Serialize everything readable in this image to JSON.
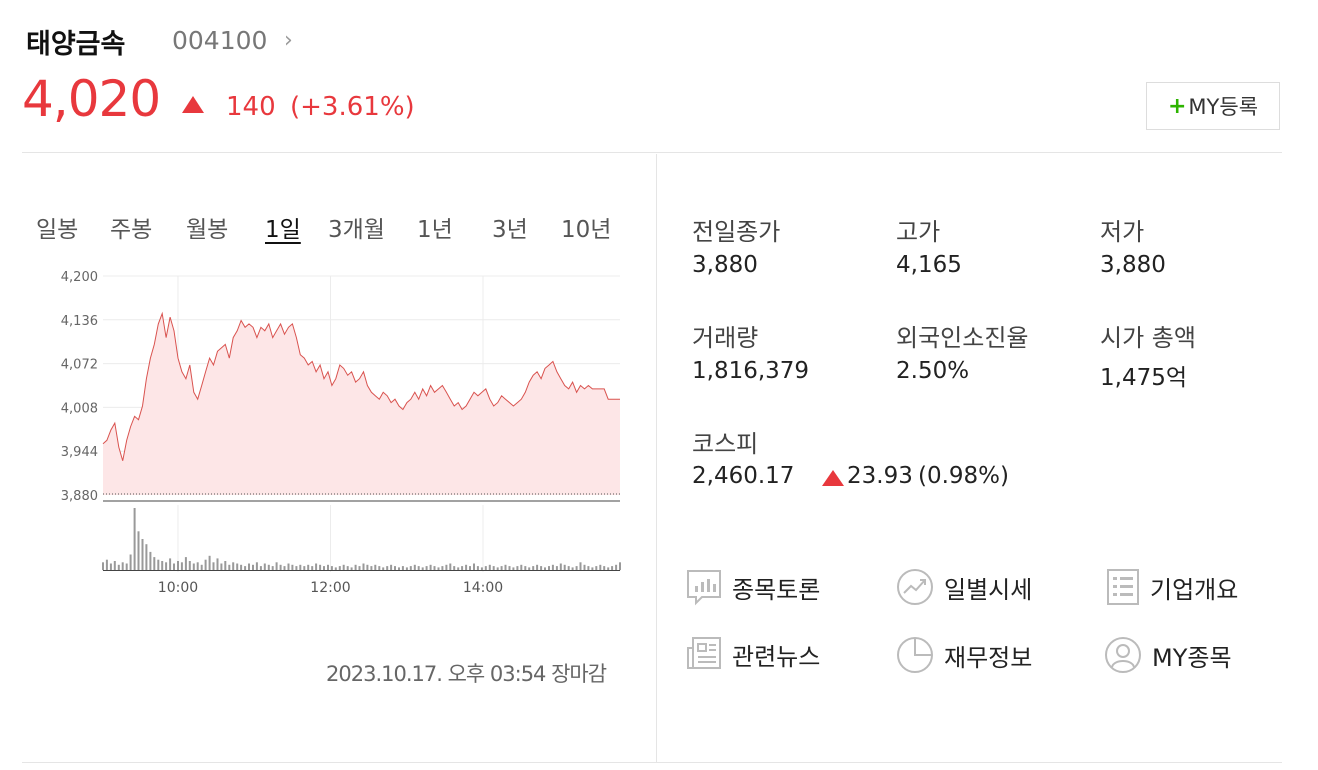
{
  "header": {
    "name": "태양금속",
    "code": "004100",
    "chevron": "›"
  },
  "price": {
    "current": "4,020",
    "change": "140",
    "change_pct": "(+3.61%)",
    "direction_icon": "up-triangle-icon",
    "color": "#e8383d"
  },
  "my_button": {
    "plus": "+",
    "label": "MY등록"
  },
  "period_tabs": [
    "일봉",
    "주봉",
    "월봉",
    "1일",
    "3개월",
    "1년",
    "3년",
    "10년"
  ],
  "active_tab": "1일",
  "chart_data": {
    "type": "line",
    "series": [
      {
        "values": [
          3955,
          3960,
          3975,
          3985,
          3950,
          3930,
          3960,
          3980,
          3995,
          3990,
          4010,
          4050,
          4080,
          4100,
          4130,
          4145,
          4110,
          4140,
          4120,
          4080,
          4060,
          4050,
          4070,
          4030,
          4020,
          4040,
          4060,
          4080,
          4070,
          4090,
          4095,
          4100,
          4080,
          4110,
          4120,
          4135,
          4125,
          4130,
          4125,
          4110,
          4125,
          4120,
          4130,
          4110,
          4120,
          4130,
          4115,
          4125,
          4130,
          4110,
          4085,
          4080,
          4070,
          4075,
          4060,
          4070,
          4050,
          4060,
          4040,
          4050,
          4070,
          4065,
          4055,
          4060,
          4045,
          4050,
          4060,
          4040,
          4030,
          4025,
          4020,
          4030,
          4025,
          4015,
          4020,
          4010,
          4005,
          4015,
          4020,
          4030,
          4020,
          4035,
          4025,
          4040,
          4030,
          4035,
          4040,
          4030,
          4020,
          4010,
          4015,
          4005,
          4010,
          4020,
          4030,
          4025,
          4030,
          4035,
          4020,
          4010,
          4015,
          4025,
          4020,
          4015,
          4010,
          4015,
          4020,
          4030,
          4045,
          4055,
          4060,
          4050,
          4065,
          4070,
          4075,
          4060,
          4050,
          4040,
          4035,
          4045,
          4030,
          4040,
          4035,
          4040,
          4035,
          4035,
          4035,
          4035,
          4020,
          4020,
          4020,
          4020
        ]
      }
    ],
    "volume": [
      6,
      8,
      5,
      7,
      4,
      6,
      5,
      12,
      48,
      30,
      24,
      20,
      14,
      10,
      8,
      7,
      6,
      9,
      5,
      7,
      6,
      10,
      7,
      5,
      6,
      4,
      8,
      11,
      6,
      9,
      5,
      7,
      4,
      6,
      5,
      4,
      3,
      5,
      4,
      6,
      3,
      5,
      4,
      3,
      6,
      4,
      3,
      5,
      4,
      3,
      4,
      3,
      4,
      3,
      5,
      4,
      3,
      4,
      3,
      2,
      3,
      4,
      3,
      2,
      4,
      3,
      5,
      4,
      3,
      4,
      3,
      2,
      3,
      4,
      3,
      2,
      3,
      2,
      3,
      4,
      3,
      2,
      3,
      4,
      3,
      2,
      3,
      4,
      5,
      3,
      2,
      3,
      4,
      3,
      5,
      3,
      2,
      3,
      4,
      3,
      2,
      3,
      4,
      3,
      2,
      3,
      4,
      3,
      2,
      3,
      4,
      3,
      2,
      3,
      4,
      3,
      5,
      4,
      3,
      2,
      3,
      6,
      4,
      3,
      2,
      3,
      4,
      3,
      2,
      3,
      4,
      6
    ],
    "ylim": [
      3880,
      4200
    ],
    "y_ticks": [
      "4,200",
      "4,136",
      "4,072",
      "4,008",
      "3,944",
      "3,880"
    ],
    "x_ticks": [
      "10:00",
      "12:00",
      "14:00"
    ],
    "baseline": 3880,
    "line_color": "#d9534f",
    "fill_color": "#fde6e7",
    "grid": true
  },
  "chart_timestamp": "2023.10.17. 오후 03:54 장마감",
  "stats": [
    {
      "label": "전일종가",
      "value": "3,880",
      "color": "#222"
    },
    {
      "label": "고가",
      "value": "4,165",
      "color": "#e8383d"
    },
    {
      "label": "저가",
      "value": "3,880",
      "color": "#222"
    },
    {
      "label": "거래량",
      "value": "1,816,379",
      "color": "#222"
    },
    {
      "label": "외국인소진율",
      "value": "2.50%",
      "color": "#222"
    },
    {
      "label": "시가 총액",
      "value": "1,475억",
      "color": "#222"
    }
  ],
  "kospi": {
    "label": "코스피",
    "value": "2,460.17",
    "change": "23.93",
    "change_pct": "(0.98%)",
    "direction_icon": "up-triangle-icon"
  },
  "links": [
    {
      "label": "종목토론",
      "icon": "chat-chart-icon"
    },
    {
      "label": "일별시세",
      "icon": "trend-icon"
    },
    {
      "label": "기업개요",
      "icon": "list-doc-icon"
    },
    {
      "label": "관련뉴스",
      "icon": "newspaper-icon"
    },
    {
      "label": "재무정보",
      "icon": "pie-chart-icon"
    },
    {
      "label": "MY종목",
      "icon": "user-icon"
    }
  ]
}
